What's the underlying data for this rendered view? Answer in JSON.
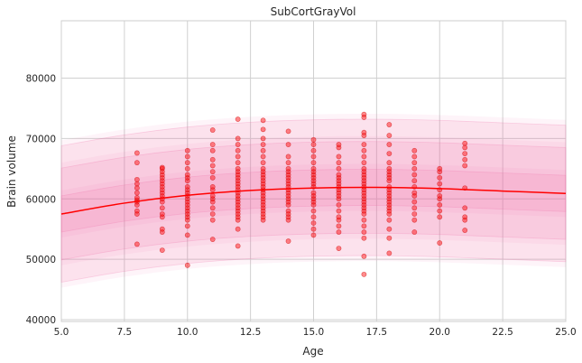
{
  "chart_data": {
    "type": "scatter",
    "title": "SubCortGrayVol",
    "xlabel": "Age",
    "ylabel": "Brain volume",
    "xlim": [
      5.0,
      25.0
    ],
    "ylim": [
      39700,
      89500
    ],
    "xticks": [
      5.0,
      7.5,
      10.0,
      12.5,
      15.0,
      17.5,
      20.0,
      22.5,
      25.0
    ],
    "xtick_labels": [
      "5.0",
      "7.5",
      "10.0",
      "12.5",
      "15.0",
      "17.5",
      "20.0",
      "22.5",
      "25.0"
    ],
    "yticks": [
      40000,
      50000,
      60000,
      70000,
      80000
    ],
    "ytick_labels": [
      "40000",
      "50000",
      "60000",
      "70000",
      "80000"
    ],
    "grid": true,
    "colors": {
      "points": "#ff0000",
      "fit_line": "#ff0000",
      "bands": "#f06aa6"
    },
    "fit_curve": {
      "x": [
        5,
        7.5,
        10,
        12.5,
        15,
        17.5,
        20,
        22.5,
        25
      ],
      "y": [
        57500,
        59300,
        60600,
        61400,
        61800,
        61900,
        61700,
        61300,
        60900
      ]
    },
    "bands": [
      {
        "offset_low": -11300,
        "offset_high": 11300
      },
      {
        "offset_low": -7600,
        "offset_high": 7600
      },
      {
        "offset_low": -3000,
        "offset_high": 3000
      }
    ],
    "points": [
      {
        "x": 8,
        "y": [
          52500,
          57500,
          58000,
          59000,
          59500,
          59800,
          60200,
          61000,
          61800,
          62500,
          63200,
          66000,
          67600
        ]
      },
      {
        "x": 9,
        "y": [
          51500,
          54500,
          55000,
          57000,
          57500,
          58500,
          59500,
          60000,
          60500,
          61000,
          61500,
          62000,
          62500,
          63000,
          63500,
          64000,
          64500,
          65000,
          65200
        ]
      },
      {
        "x": 10,
        "y": [
          49000,
          54000,
          55500,
          56500,
          57000,
          57500,
          58000,
          58500,
          59000,
          59500,
          60000,
          60500,
          61000,
          61500,
          62000,
          63000,
          63500,
          64000,
          65000,
          66000,
          67000,
          68000
        ]
      },
      {
        "x": 11,
        "y": [
          53300,
          56500,
          57500,
          58500,
          59500,
          60000,
          60500,
          61500,
          62000,
          63500,
          64500,
          65500,
          66500,
          68000,
          69000,
          71400
        ]
      },
      {
        "x": 12,
        "y": [
          52200,
          55000,
          56500,
          57000,
          57500,
          58000,
          58500,
          59000,
          59500,
          60000,
          60500,
          61000,
          61500,
          62000,
          62500,
          63000,
          63500,
          64000,
          64500,
          65000,
          66000,
          67000,
          68000,
          69000,
          70000,
          73200
        ]
      },
      {
        "x": 13,
        "y": [
          56500,
          57000,
          57500,
          58000,
          58500,
          59000,
          59500,
          60000,
          60500,
          61000,
          61500,
          62000,
          62500,
          63000,
          63500,
          64000,
          64500,
          65000,
          66000,
          67000,
          68000,
          69000,
          70000,
          71500,
          73000
        ]
      },
      {
        "x": 14,
        "y": [
          53000,
          56500,
          57000,
          57500,
          58000,
          59000,
          59500,
          60000,
          60500,
          61000,
          61500,
          62000,
          62500,
          63000,
          63500,
          64000,
          64500,
          65000,
          66000,
          67000,
          69000,
          71200
        ]
      },
      {
        "x": 15,
        "y": [
          54000,
          55000,
          56000,
          57000,
          58000,
          59000,
          59500,
          60000,
          60500,
          61000,
          62000,
          62500,
          63000,
          63500,
          64000,
          64500,
          65000,
          66000,
          67000,
          68000,
          69000,
          69800
        ]
      },
      {
        "x": 16,
        "y": [
          51800,
          54500,
          55500,
          56500,
          57000,
          58000,
          59000,
          60000,
          60500,
          61000,
          61500,
          62000,
          62500,
          63000,
          63500,
          64000,
          65000,
          66000,
          67000,
          68500,
          69000
        ]
      },
      {
        "x": 17,
        "y": [
          47500,
          50500,
          53500,
          54500,
          55500,
          56500,
          57500,
          58000,
          58500,
          59000,
          59500,
          60000,
          60500,
          61000,
          61500,
          62000,
          62500,
          63000,
          63500,
          64000,
          64500,
          65000,
          66000,
          67000,
          68000,
          69000,
          70500,
          71000,
          73500,
          74000
        ]
      },
      {
        "x": 18,
        "y": [
          51000,
          53500,
          55000,
          56500,
          57500,
          58000,
          58500,
          59000,
          59500,
          60000,
          60500,
          61000,
          61500,
          62000,
          63000,
          63500,
          64000,
          64500,
          65000,
          66000,
          67500,
          69000,
          70500,
          72300
        ]
      },
      {
        "x": 19,
        "y": [
          54500,
          56500,
          57500,
          58500,
          59500,
          60500,
          61000,
          62000,
          63000,
          64000,
          65000,
          66000,
          67000,
          68000
        ]
      },
      {
        "x": 20,
        "y": [
          52700,
          57000,
          58000,
          59000,
          60000,
          60500,
          61500,
          62500,
          63500,
          64500,
          65000
        ]
      },
      {
        "x": 21,
        "y": [
          54800,
          56500,
          57000,
          58500,
          61800,
          65500,
          66500,
          67500,
          68500,
          69200
        ]
      }
    ]
  }
}
